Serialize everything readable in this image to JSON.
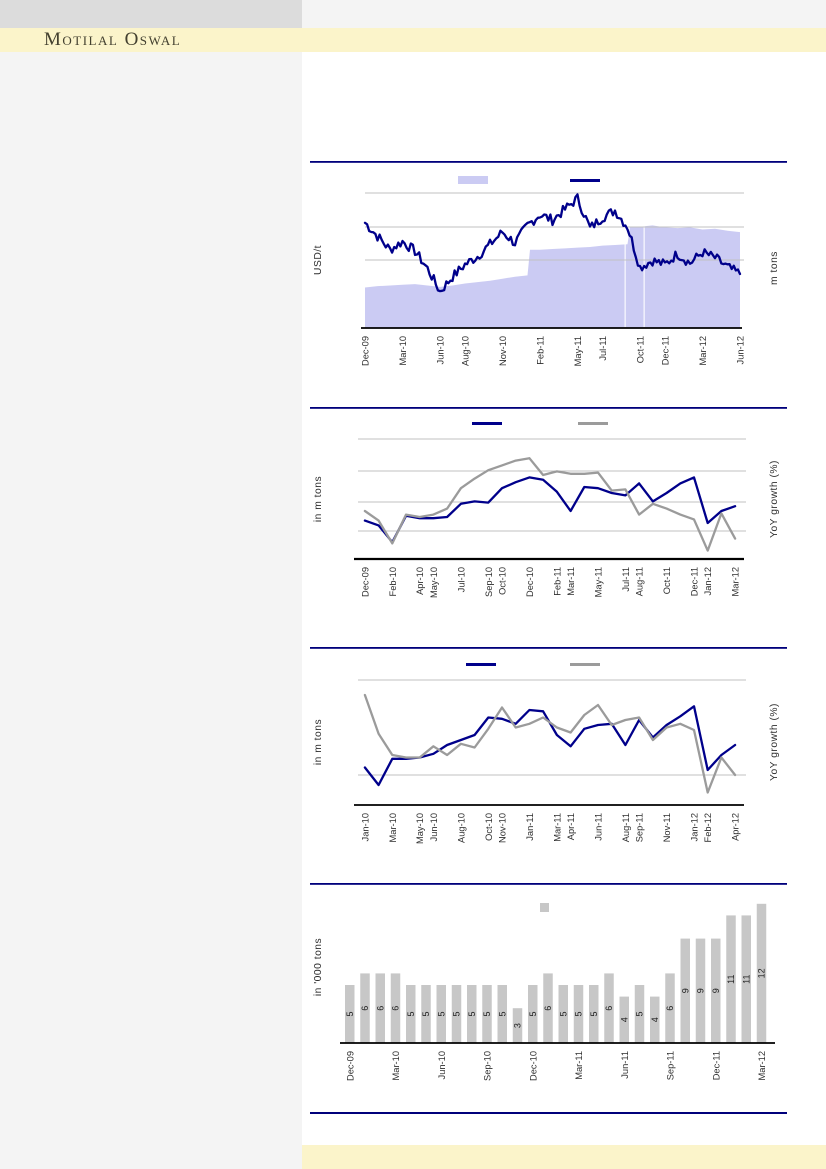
{
  "page": {
    "brand": "Motilal Oswal"
  },
  "colors": {
    "rule_navy": "#00007b",
    "line_navy": "#00008b",
    "line_gray": "#9b9b9b",
    "area_lavender": "#cbcbf3",
    "bar_gray": "#c7c7c7",
    "gridline": "#c2c2c2",
    "axis_black": "#000000",
    "tick_text": "#2e2e2e",
    "cream_band": "#fbf4ca",
    "left_panel": "#f4f4f4",
    "top_bar": "#dcdcdc"
  },
  "chart_data": [
    {
      "id": "chart-1-area-line",
      "type": "area",
      "title": "",
      "ylabel_left": "USD/t",
      "ylabel_right": "m tons",
      "value_scale": "relative 0-100 (y-axis tick numbers not shown in image)",
      "n_points": 31,
      "x_tick_labels": [
        "Dec-09",
        "Mar-10",
        "Jun-10",
        "Aug-10",
        "Nov-10",
        "Feb-11",
        "May-11",
        "Jul-11",
        "Oct-11",
        "Dec-11",
        "Mar-12",
        "Jun-12"
      ],
      "x_tick_point_index": [
        0,
        3,
        6,
        8,
        11,
        14,
        17,
        19,
        22,
        24,
        27,
        30
      ],
      "grid": "horizontal",
      "legend_position": "top",
      "legend": [
        {
          "label": "",
          "swatch": "area",
          "color": "#cbcbf3"
        },
        {
          "label": "",
          "swatch": "line",
          "color": "#00008b"
        }
      ],
      "series": [
        {
          "name": "area-series",
          "type": "area",
          "color": "#cbcbf3",
          "values": [
            30,
            31,
            31.5,
            32,
            32.5,
            31.5,
            30.5,
            31.5,
            33,
            34,
            35,
            36.5,
            38,
            39,
            58,
            58.5,
            59,
            59.5,
            60,
            61,
            61.5,
            62,
            75,
            76,
            74.5,
            74,
            74.5,
            73,
            73.5,
            72,
            71
          ]
        },
        {
          "name": "line-series",
          "type": "line",
          "color": "#00008b",
          "style": "noisy-daily",
          "values": [
            78,
            68,
            58,
            64,
            57,
            44,
            27,
            38,
            47,
            53,
            62,
            71,
            63,
            76,
            84,
            80,
            88,
            96,
            74,
            82,
            87,
            75,
            45,
            50,
            47,
            55,
            48,
            56,
            52,
            45,
            40
          ]
        }
      ]
    },
    {
      "id": "chart-2-lines",
      "type": "line",
      "title": "",
      "ylabel_left": "in m tons",
      "ylabel_right": "YoY growth (%)",
      "value_scale": "relative 0-100 (y-axis tick numbers not shown in image)",
      "n_points": 28,
      "x_tick_labels": [
        "Dec-09",
        "Feb-10",
        "Apr-10",
        "May-10",
        "Jul-10",
        "Sep-10",
        "Oct-10",
        "Dec-10",
        "Feb-11",
        "Mar-11",
        "May-11",
        "Jul-11",
        "Aug-11",
        "Oct-11",
        "Dec-11",
        "Jan-12",
        "Mar-12"
      ],
      "x_tick_point_index": [
        0,
        2,
        4,
        5,
        7,
        9,
        10,
        12,
        14,
        15,
        17,
        19,
        20,
        22,
        24,
        25,
        27
      ],
      "grid": "horizontal",
      "legend_position": "top",
      "legend": [
        {
          "label": "",
          "swatch": "line",
          "color": "#00008b"
        },
        {
          "label": "",
          "swatch": "line",
          "color": "#9b9b9b"
        }
      ],
      "series": [
        {
          "name": "navy-series",
          "type": "line",
          "color": "#00008b",
          "values": [
            32,
            28,
            14,
            36,
            34,
            34,
            35,
            46,
            48,
            47,
            59,
            64,
            68,
            66,
            56,
            40,
            60,
            59,
            55,
            53,
            63,
            48,
            55,
            63,
            68,
            30,
            40,
            44
          ]
        },
        {
          "name": "gray-series",
          "type": "line",
          "color": "#9b9b9b",
          "values": [
            40,
            32,
            13,
            37,
            35,
            37,
            42,
            59,
            67,
            74,
            78,
            82,
            84,
            70,
            73,
            71,
            71,
            72,
            57,
            58,
            37,
            46,
            42,
            37,
            33,
            7,
            38,
            17
          ]
        }
      ]
    },
    {
      "id": "chart-3-lines",
      "type": "line",
      "title": "",
      "ylabel_left": "in m tons",
      "ylabel_right": "YoY growth (%)",
      "value_scale": "relative 0-100 (y-axis tick numbers not shown in image)",
      "n_points": 28,
      "x_tick_labels": [
        "Jan-10",
        "Mar-10",
        "May-10",
        "Jun-10",
        "Aug-10",
        "Oct-10",
        "Nov-10",
        "Jan-11",
        "Mar-11",
        "Apr-11",
        "Jun-11",
        "Aug-11",
        "Sep-11",
        "Nov-11",
        "Jan-12",
        "Feb-12",
        "Apr-12"
      ],
      "x_tick_point_index": [
        0,
        2,
        4,
        5,
        7,
        9,
        10,
        12,
        14,
        15,
        17,
        19,
        20,
        22,
        24,
        25,
        27
      ],
      "grid": "horizontal",
      "legend_position": "top",
      "legend": [
        {
          "label": "",
          "swatch": "line",
          "color": "#00008b"
        },
        {
          "label": "",
          "swatch": "line",
          "color": "#9b9b9b"
        }
      ],
      "series": [
        {
          "name": "navy-series",
          "type": "line",
          "color": "#00008b",
          "values": [
            30,
            16,
            37,
            37,
            38,
            41,
            48,
            52,
            56,
            70,
            69,
            65,
            76,
            75,
            56,
            47,
            61,
            64,
            65,
            48,
            68,
            54,
            64,
            71,
            79,
            28,
            40,
            48
          ]
        },
        {
          "name": "gray-series",
          "type": "line",
          "color": "#9b9b9b",
          "values": [
            88,
            57,
            40,
            38,
            38,
            47,
            40,
            49,
            46,
            61,
            78,
            62,
            65,
            70,
            62,
            58,
            72,
            80,
            64,
            68,
            70,
            52,
            62,
            65,
            60,
            10,
            38,
            24
          ]
        }
      ]
    },
    {
      "id": "chart-4-bars",
      "type": "bar",
      "title": "",
      "ylabel_left": "in '000 tons",
      "n_points": 28,
      "x_tick_labels": [
        "Dec-09",
        "Mar-10",
        "Jun-10",
        "Sep-10",
        "Dec-10",
        "Mar-11",
        "Jun-11",
        "Sep-11",
        "Dec-11",
        "Mar-12"
      ],
      "x_tick_point_index": [
        0,
        3,
        6,
        9,
        12,
        15,
        18,
        21,
        24,
        27
      ],
      "data_labels": "on bars, rotated",
      "legend_position": "top",
      "legend": [
        {
          "label": "",
          "swatch": "square",
          "color": "#c7c7c7"
        }
      ],
      "series": [
        {
          "name": "bar-series",
          "type": "bar",
          "color": "#c7c7c7",
          "values": [
            5,
            6,
            6,
            6,
            5,
            5,
            5,
            5,
            5,
            5,
            5,
            3,
            5,
            6,
            5,
            5,
            5,
            6,
            4,
            5,
            4,
            6,
            9,
            9,
            9,
            11,
            11,
            12
          ]
        }
      ]
    }
  ]
}
